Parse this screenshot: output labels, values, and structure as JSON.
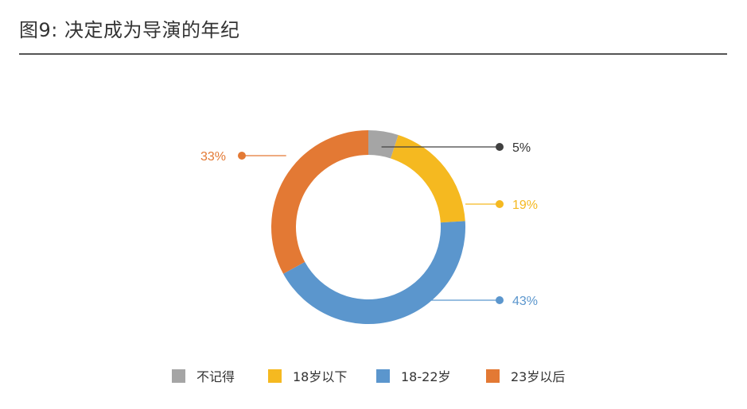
{
  "chart_data": {
    "type": "pie",
    "title": "图9: 决定成为导演的年纪",
    "categories": [
      "不记得",
      "18岁以下",
      "18-22岁",
      "23岁以后"
    ],
    "values": [
      5,
      19,
      43,
      33
    ],
    "labels": [
      "5%",
      "19%",
      "43%",
      "33%"
    ],
    "colors": [
      "#a5a5a5",
      "#f5b920",
      "#5b96cd",
      "#e37934"
    ],
    "legend": {
      "placement": "bottom",
      "items": [
        {
          "label": "不记得",
          "color": "#a5a5a5"
        },
        {
          "label": "18岁以下",
          "color": "#f5b920"
        },
        {
          "label": "18-22岁",
          "color": "#5b96cd"
        },
        {
          "label": "23岁以后",
          "color": "#e37934"
        }
      ]
    }
  }
}
